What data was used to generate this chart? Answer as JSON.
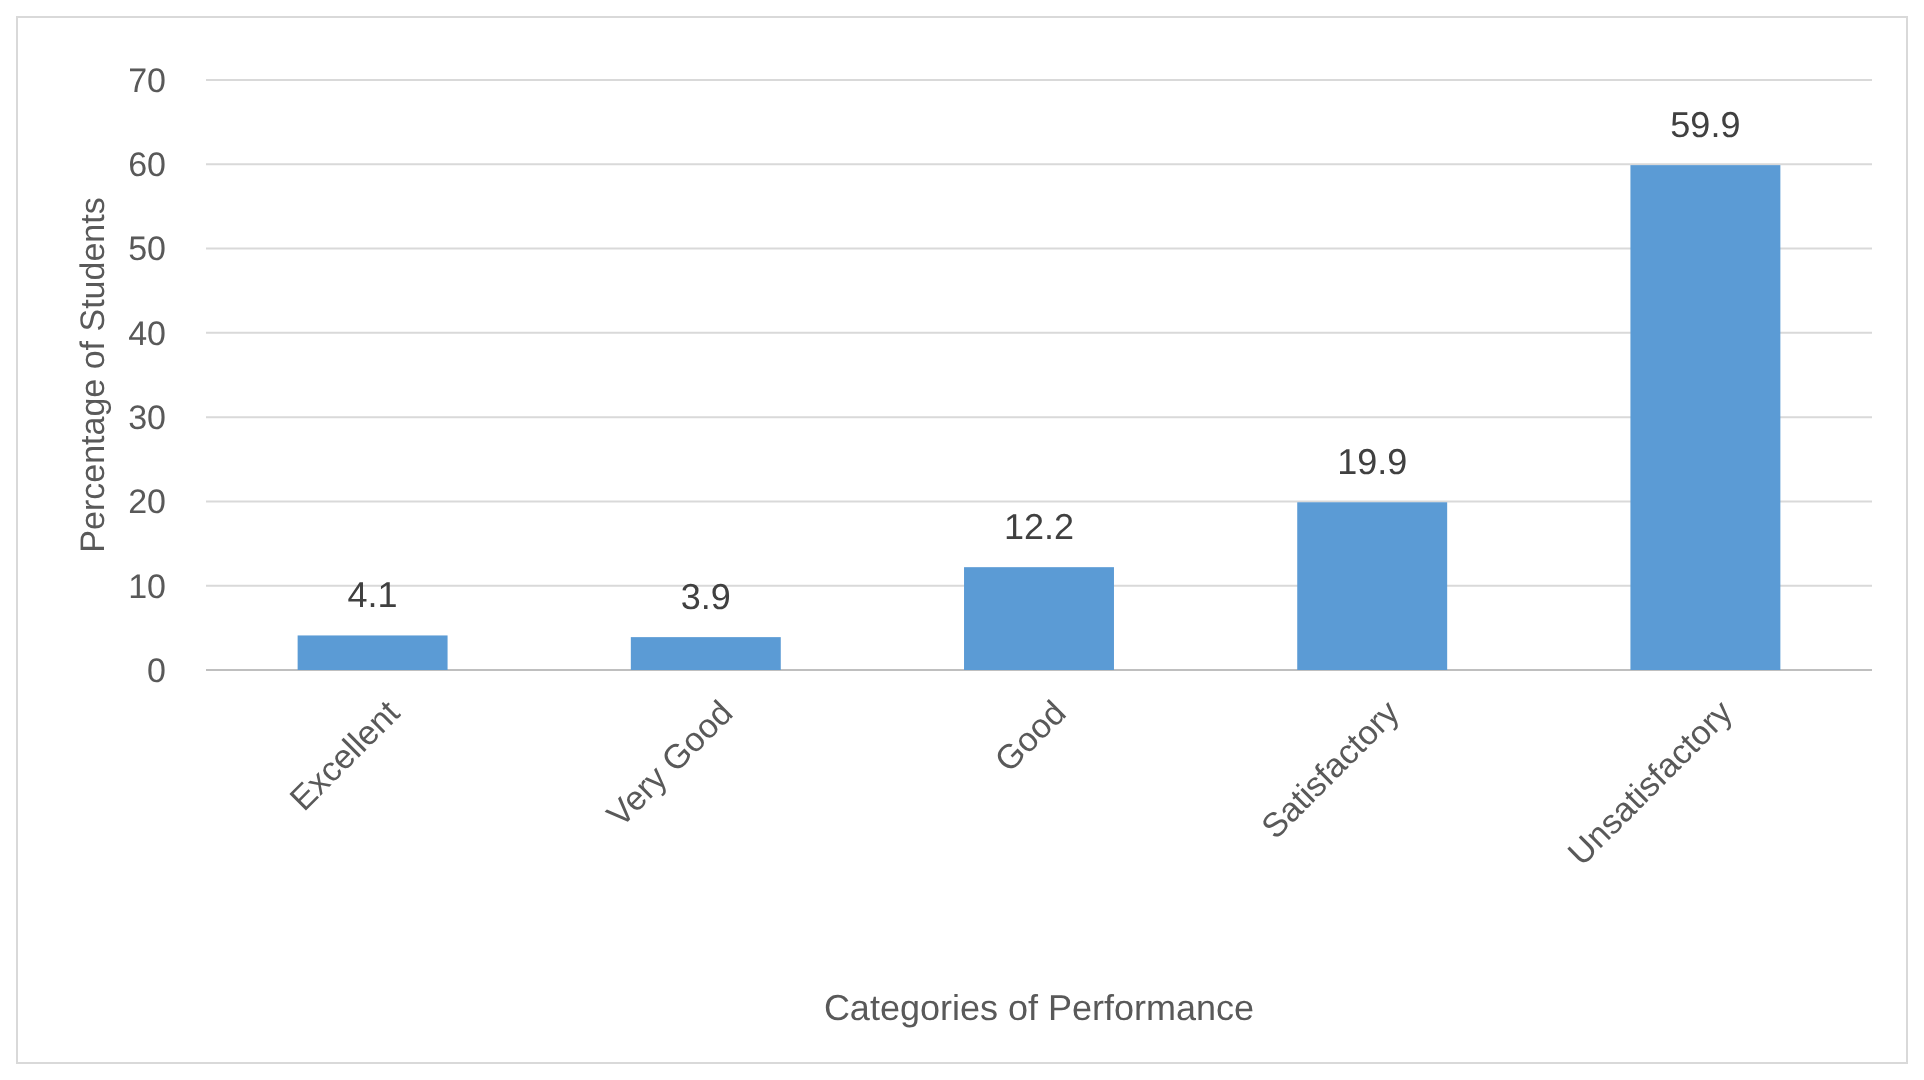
{
  "chart_data": {
    "type": "bar",
    "xlabel": "Categories of Performance",
    "ylabel": "Percentage of Students",
    "categories": [
      "Excellent",
      "Very Good",
      "Good",
      "Satisfactory",
      "Unsatisfactory"
    ],
    "values": [
      4.1,
      3.9,
      12.2,
      19.9,
      59.9
    ],
    "color": "#5b9bd5",
    "ylim": [
      0,
      70
    ],
    "yticks": [
      0,
      10,
      20,
      30,
      40,
      50,
      60,
      70
    ],
    "grid": "y",
    "data_labels": true
  }
}
